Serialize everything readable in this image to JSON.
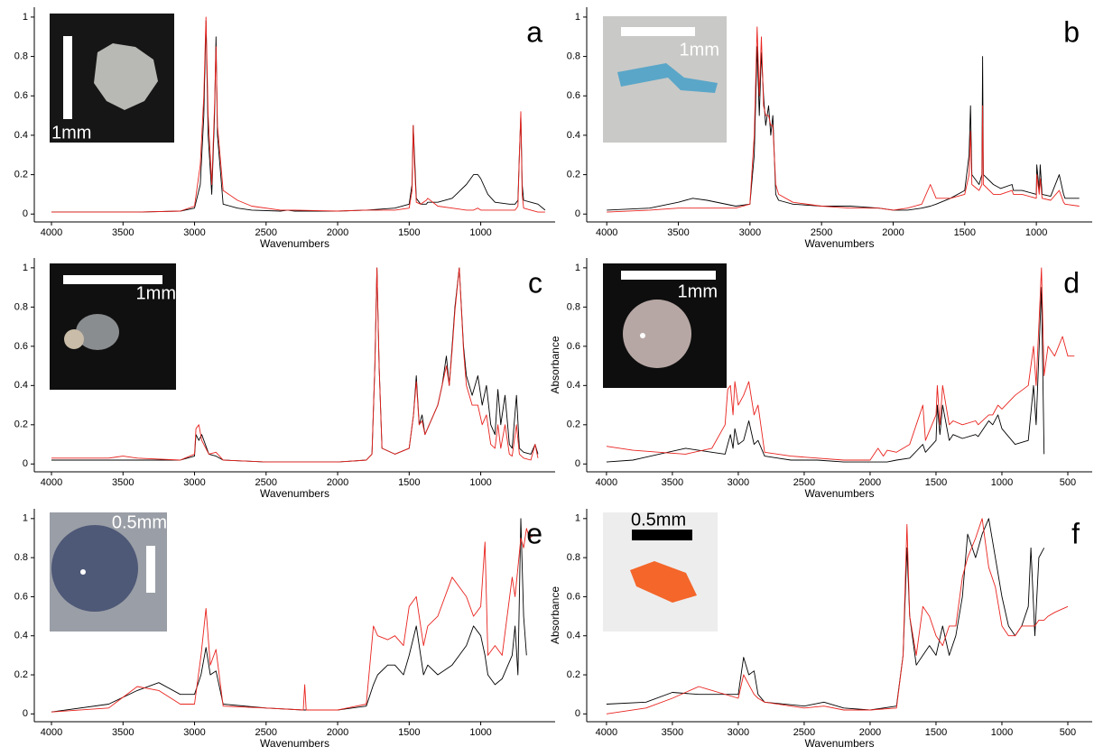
{
  "chart_data": [
    {
      "type": "line",
      "panel_label": "a",
      "inset_label": "1mm",
      "x_label": "Wavenumbers",
      "x": [
        4000,
        3700,
        3400,
        3100,
        3000,
        2960,
        2935,
        2920,
        2905,
        2880,
        2860,
        2850,
        2840,
        2800,
        2700,
        2600,
        2400,
        2350,
        2300,
        2000,
        1800,
        1600,
        1500,
        1480,
        1472,
        1463,
        1450,
        1420,
        1380,
        1370,
        1300,
        1200,
        1100,
        1050,
        1020,
        1000,
        950,
        900,
        800,
        760,
        740,
        730,
        720,
        710,
        700,
        650,
        600,
        550
      ],
      "series": [
        {
          "color": "#000000",
          "values": [
            0.01,
            0.01,
            0.01,
            0.015,
            0.03,
            0.15,
            0.5,
            0.98,
            0.4,
            0.1,
            0.5,
            0.9,
            0.4,
            0.05,
            0.03,
            0.02,
            0.015,
            0.02,
            0.015,
            0.015,
            0.02,
            0.03,
            0.05,
            0.15,
            0.45,
            0.3,
            0.08,
            0.05,
            0.05,
            0.06,
            0.06,
            0.08,
            0.15,
            0.2,
            0.2,
            0.18,
            0.1,
            0.06,
            0.05,
            0.05,
            0.07,
            0.3,
            0.5,
            0.15,
            0.07,
            0.06,
            0.05,
            0.02
          ]
        },
        {
          "color": "#e8231e",
          "values": [
            0.01,
            0.01,
            0.01,
            0.015,
            0.04,
            0.25,
            0.6,
            1.0,
            0.5,
            0.15,
            0.55,
            0.85,
            0.45,
            0.12,
            0.07,
            0.04,
            0.02,
            0.02,
            0.02,
            0.015,
            0.02,
            0.02,
            0.03,
            0.12,
            0.45,
            0.25,
            0.06,
            0.05,
            0.07,
            0.08,
            0.04,
            0.03,
            0.02,
            0.02,
            0.03,
            0.02,
            0.02,
            0.02,
            0.02,
            0.02,
            0.04,
            0.3,
            0.52,
            0.1,
            0.03,
            0.02,
            0.01,
            0.01
          ]
        }
      ],
      "xlim": [
        4120,
        480
      ],
      "xticks": [
        4000,
        3500,
        3000,
        2500,
        2000,
        1500,
        1000
      ],
      "ylim": [
        -0.04,
        1.05
      ],
      "yticks": [
        0,
        0.2,
        0.4,
        0.6,
        0.8,
        1
      ]
    },
    {
      "type": "line",
      "panel_label": "b",
      "inset_label": "1mm",
      "x_label": "Wavenumbers",
      "x": [
        4000,
        3700,
        3500,
        3400,
        3300,
        3100,
        3000,
        2970,
        2950,
        2935,
        2920,
        2905,
        2890,
        2870,
        2855,
        2840,
        2820,
        2800,
        2700,
        2500,
        2300,
        2100,
        2000,
        1900,
        1800,
        1740,
        1700,
        1600,
        1500,
        1470,
        1460,
        1450,
        1400,
        1380,
        1375,
        1370,
        1300,
        1250,
        1170,
        1160,
        1100,
        1000,
        997,
        980,
        973,
        960,
        900,
        840,
        810,
        800,
        700
      ],
      "series": [
        {
          "color": "#000000",
          "values": [
            0.02,
            0.03,
            0.06,
            0.08,
            0.07,
            0.04,
            0.05,
            0.3,
            0.85,
            0.5,
            0.82,
            0.6,
            0.45,
            0.55,
            0.4,
            0.5,
            0.1,
            0.07,
            0.05,
            0.04,
            0.04,
            0.03,
            0.02,
            0.02,
            0.03,
            0.04,
            0.05,
            0.08,
            0.12,
            0.3,
            0.55,
            0.2,
            0.15,
            0.2,
            0.8,
            0.2,
            0.15,
            0.13,
            0.15,
            0.12,
            0.12,
            0.1,
            0.25,
            0.12,
            0.25,
            0.1,
            0.09,
            0.2,
            0.1,
            0.08,
            0.08
          ]
        },
        {
          "color": "#e8231e",
          "values": [
            0.01,
            0.02,
            0.03,
            0.03,
            0.03,
            0.03,
            0.05,
            0.4,
            0.95,
            0.6,
            0.9,
            0.55,
            0.5,
            0.5,
            0.45,
            0.45,
            0.15,
            0.1,
            0.06,
            0.04,
            0.03,
            0.03,
            0.02,
            0.03,
            0.05,
            0.15,
            0.08,
            0.08,
            0.1,
            0.2,
            0.42,
            0.15,
            0.12,
            0.15,
            0.55,
            0.15,
            0.1,
            0.1,
            0.12,
            0.1,
            0.1,
            0.08,
            0.2,
            0.1,
            0.18,
            0.08,
            0.07,
            0.12,
            0.06,
            0.05,
            0.04
          ]
        }
      ],
      "xlim": [
        4140,
        610
      ],
      "xticks": [
        4000,
        3500,
        3000,
        2500,
        2000,
        1500,
        1000
      ],
      "ylim": [
        -0.04,
        1.05
      ],
      "yticks": [
        0,
        0.2,
        0.4,
        0.6,
        0.8,
        1
      ]
    },
    {
      "type": "line",
      "panel_label": "c",
      "inset_label": "1mm",
      "x_label": "Wavenumbers",
      "x": [
        4000,
        3600,
        3500,
        3400,
        3100,
        3000,
        2990,
        2970,
        2950,
        2900,
        2850,
        2800,
        2500,
        2200,
        2100,
        2000,
        1800,
        1760,
        1740,
        1725,
        1710,
        1690,
        1600,
        1500,
        1470,
        1450,
        1430,
        1410,
        1390,
        1300,
        1270,
        1240,
        1220,
        1200,
        1180,
        1150,
        1120,
        1100,
        1060,
        1020,
        990,
        960,
        930,
        900,
        880,
        860,
        830,
        800,
        780,
        750,
        730,
        700,
        650,
        620,
        600
      ],
      "series": [
        {
          "color": "#000000",
          "values": [
            0.02,
            0.02,
            0.02,
            0.02,
            0.02,
            0.04,
            0.15,
            0.12,
            0.15,
            0.05,
            0.04,
            0.02,
            0.01,
            0.01,
            0.01,
            0.01,
            0.02,
            0.05,
            0.5,
            1.0,
            0.5,
            0.08,
            0.05,
            0.08,
            0.25,
            0.45,
            0.2,
            0.25,
            0.15,
            0.3,
            0.4,
            0.55,
            0.4,
            0.6,
            0.8,
            1.0,
            0.6,
            0.45,
            0.35,
            0.45,
            0.3,
            0.4,
            0.2,
            0.15,
            0.38,
            0.2,
            0.35,
            0.1,
            0.08,
            0.35,
            0.08,
            0.06,
            0.05,
            0.1,
            0.05
          ]
        },
        {
          "color": "#e8231e",
          "values": [
            0.03,
            0.03,
            0.04,
            0.03,
            0.02,
            0.05,
            0.18,
            0.2,
            0.12,
            0.05,
            0.06,
            0.02,
            0.01,
            0.01,
            0.01,
            0.01,
            0.02,
            0.05,
            0.5,
            1.0,
            0.5,
            0.08,
            0.05,
            0.08,
            0.25,
            0.42,
            0.2,
            0.22,
            0.15,
            0.3,
            0.4,
            0.5,
            0.4,
            0.58,
            0.78,
            1.0,
            0.58,
            0.4,
            0.3,
            0.3,
            0.2,
            0.25,
            0.1,
            0.08,
            0.2,
            0.08,
            0.2,
            0.05,
            0.04,
            0.2,
            0.05,
            0.03,
            0.02,
            0.1,
            0.03
          ]
        }
      ],
      "xlim": [
        4120,
        480
      ],
      "xticks": [
        4000,
        3500,
        3000,
        2500,
        2000,
        1500,
        1000
      ],
      "ylim": [
        -0.04,
        1.05
      ],
      "yticks": [
        0,
        0.2,
        0.4,
        0.6,
        0.8,
        1
      ]
    },
    {
      "type": "line",
      "panel_label": "d",
      "inset_label": "1mm",
      "x_label": "Wavenumbers",
      "y_label": "Absorbance",
      "x": [
        4000,
        3800,
        3600,
        3400,
        3200,
        3100,
        3080,
        3060,
        3040,
        3026,
        3000,
        2960,
        2920,
        2880,
        2850,
        2800,
        2600,
        2400,
        2200,
        2000,
        1940,
        1900,
        1870,
        1800,
        1700,
        1600,
        1580,
        1500,
        1490,
        1470,
        1450,
        1400,
        1370,
        1300,
        1200,
        1180,
        1100,
        1070,
        1030,
        1000,
        900,
        800,
        760,
        740,
        700,
        680,
        650,
        600,
        540,
        500,
        450
      ],
      "series": [
        {
          "color": "#000000",
          "values": [
            0.01,
            0.02,
            0.05,
            0.08,
            0.06,
            0.05,
            0.1,
            0.15,
            0.08,
            0.18,
            0.1,
            0.12,
            0.22,
            0.1,
            0.12,
            0.04,
            0.02,
            0.02,
            0.01,
            0.01,
            0.01,
            0.01,
            0.01,
            0.02,
            0.03,
            0.1,
            0.06,
            0.12,
            0.3,
            0.15,
            0.3,
            0.12,
            0.15,
            0.13,
            0.15,
            0.14,
            0.22,
            0.2,
            0.25,
            0.18,
            0.1,
            0.12,
            0.4,
            0.2,
            0.9,
            0.05,
            null,
            null,
            null,
            null,
            null
          ]
        },
        {
          "color": "#e8231e",
          "values": [
            0.09,
            0.07,
            0.06,
            0.05,
            0.08,
            0.2,
            0.38,
            0.4,
            0.25,
            0.42,
            0.3,
            0.35,
            0.42,
            0.25,
            0.3,
            0.06,
            0.04,
            0.03,
            0.02,
            0.02,
            0.08,
            0.04,
            0.07,
            0.06,
            0.1,
            0.3,
            0.12,
            0.25,
            0.4,
            0.2,
            0.4,
            0.2,
            0.22,
            0.2,
            0.22,
            0.2,
            0.25,
            0.25,
            0.3,
            0.28,
            0.35,
            0.4,
            0.6,
            0.4,
            1.0,
            0.45,
            0.6,
            0.55,
            0.65,
            0.55,
            0.55
          ]
        }
      ],
      "xlim": [
        4150,
        315
      ],
      "xticks": [
        4000,
        3500,
        3000,
        2500,
        2000,
        1500,
        1000,
        500
      ],
      "ylim": [
        -0.04,
        1.05
      ],
      "yticks": [
        0,
        0.2,
        0.4,
        0.6,
        0.8,
        1
      ]
    },
    {
      "type": "line",
      "panel_label": "e",
      "inset_label": "0.5mm",
      "x_label": "Wavenumbers",
      "x": [
        4000,
        3600,
        3400,
        3250,
        3100,
        3000,
        2955,
        2920,
        2890,
        2850,
        2800,
        2500,
        2240,
        2230,
        2220,
        2000,
        1800,
        1750,
        1720,
        1650,
        1600,
        1540,
        1500,
        1450,
        1400,
        1370,
        1300,
        1200,
        1100,
        1050,
        1000,
        970,
        950,
        900,
        850,
        780,
        760,
        740,
        720,
        700,
        680,
        660,
        620
      ],
      "series": [
        {
          "color": "#000000",
          "values": [
            0.01,
            0.05,
            0.12,
            0.16,
            0.1,
            0.1,
            0.2,
            0.34,
            0.2,
            0.22,
            0.05,
            0.03,
            0.02,
            0.02,
            0.02,
            0.02,
            0.04,
            0.15,
            0.2,
            0.25,
            0.25,
            0.2,
            0.3,
            0.45,
            0.2,
            0.25,
            0.2,
            0.25,
            0.35,
            0.45,
            0.4,
            0.3,
            0.2,
            0.15,
            0.18,
            0.3,
            0.45,
            0.2,
            1.0,
            0.5,
            0.3,
            null,
            null
          ]
        },
        {
          "color": "#e8231e",
          "values": [
            0.01,
            0.03,
            0.14,
            0.12,
            0.05,
            0.05,
            0.3,
            0.54,
            0.25,
            0.33,
            0.04,
            0.03,
            0.02,
            0.15,
            0.02,
            0.02,
            0.05,
            0.45,
            0.4,
            0.38,
            0.4,
            0.35,
            0.55,
            0.6,
            0.35,
            0.45,
            0.5,
            0.7,
            0.6,
            0.5,
            0.55,
            0.88,
            0.3,
            0.35,
            0.3,
            0.7,
            0.6,
            0.75,
            0.9,
            0.85,
            0.95,
            0.9,
            0.92
          ]
        }
      ],
      "xlim": [
        4120,
        480
      ],
      "xticks": [
        4000,
        3500,
        3000,
        2500,
        2000,
        1500,
        1000
      ],
      "ylim": [
        -0.04,
        1.05
      ],
      "yticks": [
        0,
        0.2,
        0.4,
        0.6,
        0.8,
        1
      ]
    },
    {
      "type": "line",
      "panel_label": "f",
      "inset_label": "0.5mm",
      "x_label": "Wavenumbers",
      "y_label": "Absorbance",
      "x": [
        4000,
        3700,
        3500,
        3300,
        3000,
        2960,
        2920,
        2880,
        2850,
        2800,
        2500,
        2350,
        2200,
        2000,
        1800,
        1750,
        1720,
        1700,
        1650,
        1600,
        1550,
        1500,
        1450,
        1400,
        1350,
        1300,
        1260,
        1200,
        1150,
        1100,
        1050,
        1000,
        950,
        900,
        850,
        800,
        780,
        750,
        720,
        680,
        650,
        600,
        500
      ],
      "series": [
        {
          "color": "#000000",
          "values": [
            0.05,
            0.06,
            0.11,
            0.1,
            0.1,
            0.29,
            0.2,
            0.22,
            0.1,
            0.06,
            0.04,
            0.06,
            0.03,
            0.02,
            0.04,
            0.3,
            0.85,
            0.5,
            0.25,
            0.3,
            0.35,
            0.3,
            0.45,
            0.3,
            0.4,
            0.6,
            0.92,
            0.8,
            0.92,
            1.0,
            0.8,
            0.6,
            0.45,
            0.4,
            0.45,
            0.55,
            0.85,
            0.4,
            0.8,
            0.85,
            null,
            null,
            null
          ]
        },
        {
          "color": "#e8231e",
          "values": [
            0.0,
            0.03,
            0.08,
            0.14,
            0.08,
            0.2,
            0.15,
            0.1,
            0.08,
            0.06,
            0.03,
            0.04,
            0.02,
            0.02,
            0.03,
            0.3,
            0.97,
            0.5,
            0.3,
            0.55,
            0.5,
            0.4,
            0.35,
            0.45,
            0.45,
            0.7,
            0.8,
            0.9,
            1.0,
            0.75,
            0.65,
            0.45,
            0.4,
            0.4,
            0.45,
            0.45,
            0.45,
            0.45,
            0.48,
            0.48,
            0.5,
            0.52,
            0.55
          ]
        }
      ],
      "xlim": [
        4150,
        315
      ],
      "xticks": [
        4000,
        3500,
        3000,
        2500,
        2000,
        1500,
        1000,
        500
      ],
      "ylim": [
        -0.04,
        1.05
      ],
      "yticks": [
        0,
        0.2,
        0.4,
        0.6,
        0.8,
        1
      ]
    }
  ]
}
